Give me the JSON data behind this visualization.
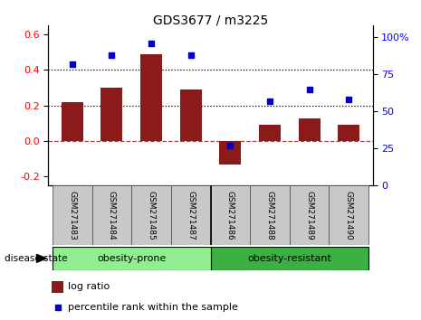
{
  "title": "GDS3677 / m3225",
  "categories": [
    "GSM271483",
    "GSM271484",
    "GSM271485",
    "GSM271487",
    "GSM271486",
    "GSM271488",
    "GSM271489",
    "GSM271490"
  ],
  "log_ratios": [
    0.22,
    0.3,
    0.49,
    0.29,
    -0.13,
    0.09,
    0.13,
    0.09
  ],
  "percentile_ranks": [
    82,
    88,
    96,
    88,
    27,
    57,
    65,
    58
  ],
  "bar_color": "#8B1A1A",
  "dot_color": "#0000CC",
  "ylim_left": [
    -0.25,
    0.65
  ],
  "ylim_right": [
    0,
    108
  ],
  "yticks_left": [
    -0.2,
    0.0,
    0.2,
    0.4,
    0.6
  ],
  "yticks_right": [
    0,
    25,
    50,
    75,
    100
  ],
  "ytick_labels_right": [
    "0",
    "25",
    "50",
    "75",
    "100%"
  ],
  "group1_label": "obesity-prone",
  "group2_label": "obesity-resistant",
  "group1_indices": [
    0,
    1,
    2,
    3
  ],
  "group2_indices": [
    4,
    5,
    6,
    7
  ],
  "group1_color": "#90EE90",
  "group2_color": "#3CB043",
  "disease_state_label": "disease state",
  "legend_bar_label": "log ratio",
  "legend_dot_label": "percentile rank within the sample",
  "dotted_lines": [
    0.2,
    0.4
  ],
  "bar_width": 0.55,
  "tick_area_color": "#C8C8C8",
  "sep_line_color": "#555555"
}
